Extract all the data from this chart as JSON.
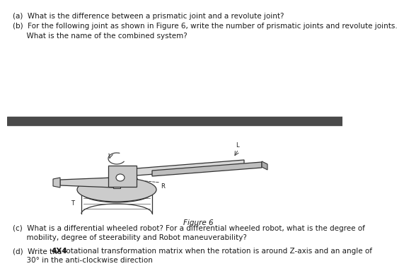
{
  "bg_color": "#ffffff",
  "divider_color": "#4a4a4a",
  "text_color": "#1a1a1a",
  "line_a": "(a)  What is the difference between a prismatic joint and a revolute joint?",
  "line_b1": "(b)  For the following joint as shown in Figure 6, write the number of prismatic joints and revolute joints.",
  "line_b2": "      What is the name of the combined system?",
  "figure_caption": "Figure 6",
  "line_c1": "(c)  What is a differential wheeled robot? For a differential wheeled robot, what is the degree of",
  "line_c2": "      mobility, degree of steerability and Robot maneuverability?",
  "line_d1a": "(d)  Write the ",
  "line_d1b": "4X4",
  "line_d1c": " rotational transformation matrix when the rotation is around Z-axis and an angle of",
  "line_d2": "      30° in the anti-clockwise direction",
  "fs_main": 7.5,
  "fs_label": 6.0
}
